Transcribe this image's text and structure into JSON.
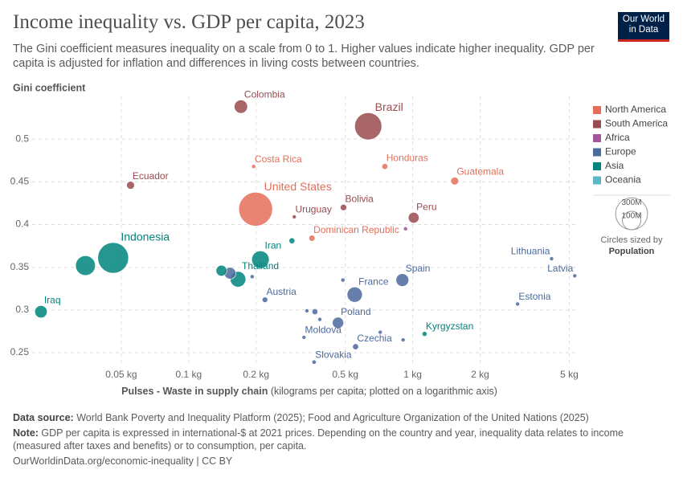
{
  "logo": [
    "Our World",
    "in Data"
  ],
  "chart_data": {
    "type": "scatter",
    "title": "Income inequality vs. GDP per capita, 2023",
    "subtitle": "The Gini coefficient measures inequality on a scale from 0 to 1. Higher values indicate higher inequality. GDP per capita is adjusted for inflation and differences in living costs between countries.",
    "y_label": "Gini coefficient",
    "x_label_bold": "Pulses - Waste in supply chain",
    "x_label_rest": " (kilograms per capita; plotted on a logarithmic axis)",
    "xscale": "log",
    "grid": true,
    "xlim": [
      0.02,
      5.5
    ],
    "ylim": [
      0.235,
      0.55
    ],
    "xticks": [
      {
        "value": 0.05,
        "label": "0.05 kg"
      },
      {
        "value": 0.1,
        "label": "0.1 kg"
      },
      {
        "value": 0.2,
        "label": "0.2 kg"
      },
      {
        "value": 0.5,
        "label": "0.5 kg"
      },
      {
        "value": 1,
        "label": "1 kg"
      },
      {
        "value": 2,
        "label": "2 kg"
      },
      {
        "value": 5,
        "label": "5 kg"
      }
    ],
    "yticks": [
      0.25,
      0.3,
      0.35,
      0.4,
      0.45,
      0.5
    ],
    "legend_position": "right",
    "series": [
      {
        "name": "North America",
        "color": "#e56e5a",
        "x": [
          0.195,
          0.751,
          1.54,
          0.199,
          0.355
        ],
        "values": [
          0.468,
          0.468,
          0.451,
          0.418,
          0.384
        ],
        "sizes": [
          5,
          10,
          18,
          335,
          11
        ],
        "labels": [
          "Costa Rica",
          "Honduras",
          "Guatemala",
          "United States",
          "Dominican Republic"
        ]
      },
      {
        "name": "South America",
        "color": "#9a4b4f",
        "x": [
          0.171,
          0.633,
          0.055,
          0.491,
          0.296,
          1.01
        ],
        "values": [
          0.538,
          0.515,
          0.446,
          0.42,
          0.409,
          0.408
        ],
        "sizes": [
          52,
          216,
          18,
          12,
          3.4,
          34
        ],
        "labels": [
          "Colombia",
          "Brazil",
          "Ecuador",
          "Bolivia",
          "Uruguay",
          "Peru"
        ]
      },
      {
        "name": "Africa",
        "color": "#a2559c",
        "x": [
          0.929
        ],
        "values": [
          0.395
        ],
        "sizes": [
          5
        ],
        "labels": [
          null
        ]
      },
      {
        "name": "Europe",
        "color": "#4c6a9c",
        "x": [
          4.17,
          5.29,
          2.94,
          0.899,
          0.551,
          0.488,
          0.219,
          0.192,
          0.153,
          0.337,
          0.366,
          0.385,
          0.464,
          0.327,
          0.716,
          0.906,
          0.556,
          0.363
        ],
        "values": [
          0.36,
          0.34,
          0.307,
          0.335,
          0.318,
          0.335,
          0.312,
          0.339,
          0.343,
          0.299,
          0.298,
          0.289,
          0.285,
          0.268,
          0.274,
          0.265,
          0.257,
          0.239
        ],
        "sizes": [
          2.8,
          1.9,
          1.4,
          48,
          68,
          5,
          9,
          5,
          40,
          4,
          10,
          3,
          37,
          2.5,
          4,
          2,
          10.5,
          5.4
        ],
        "labels": [
          "Lithuania",
          "Latvia",
          "Estonia",
          "Spain",
          "France",
          null,
          "Austria",
          null,
          null,
          null,
          null,
          null,
          "Poland",
          "Moldova",
          null,
          null,
          "Czechia",
          "Slovakia"
        ]
      },
      {
        "name": "Asia",
        "color": "#00847e",
        "x": [
          0.046,
          0.0346,
          0.209,
          0.289,
          0.166,
          0.14,
          0.0219,
          1.13
        ],
        "values": [
          0.361,
          0.352,
          0.359,
          0.381,
          0.336,
          0.346,
          0.298,
          0.272
        ],
        "sizes": [
          277,
          115,
          89,
          10,
          71,
          34,
          45,
          7
        ],
        "labels": [
          "Indonesia",
          null,
          "Iran",
          null,
          "Thailand",
          null,
          "Iraq",
          "Kyrgyzstan"
        ]
      },
      {
        "name": "Oceania",
        "color": "#5ab7c4",
        "x": [],
        "values": [],
        "sizes": [],
        "labels": []
      }
    ],
    "size_legend": {
      "ticks": [
        {
          "value": 300,
          "label": "300M"
        },
        {
          "value": 100,
          "label": "100M"
        }
      ],
      "caption": "Circles sized by",
      "variable": "Population"
    }
  },
  "footer": {
    "source_label": "Data source:",
    "source": " World Bank Poverty and Inequality Platform (2025); Food and Agriculture Organization of the United Nations (2025)",
    "note_label": "Note:",
    "note": " GDP per capita is expressed in international-$ at 2021 prices. Depending on the country and year, inequality data relates to income (measured after taxes and benefits) or to consumption, per capita.",
    "url": "OurWorldinData.org/economic-inequality | CC BY"
  }
}
